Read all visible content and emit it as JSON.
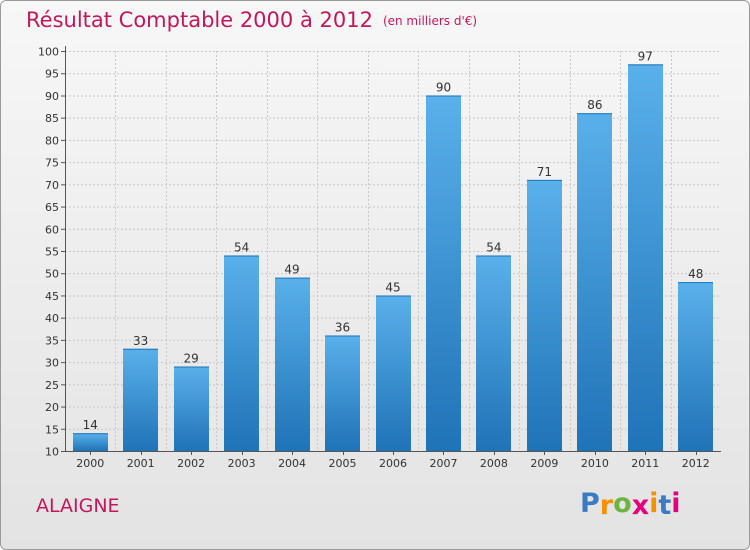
{
  "title": "Résultat Comptable 2000 à 2012",
  "title_unit": "(en milliers d'€)",
  "commune": "ALAIGNE",
  "logo": {
    "letters": [
      "P",
      "r",
      "o",
      "x",
      "i",
      "t",
      "i"
    ],
    "colors": [
      "#3a7cc4",
      "#f39200",
      "#6fb43f",
      "#e5007e",
      "#f39200",
      "#3a7cc4",
      "#e5007e"
    ]
  },
  "colors": {
    "accent": "#c2185b",
    "bar_top": "#5ab0ea",
    "bar_bottom": "#1f73b7"
  },
  "chart_data": {
    "type": "bar",
    "title": "Résultat Comptable 2000 à 2012",
    "ylabel": "en milliers d'€",
    "categories": [
      "2000",
      "2001",
      "2002",
      "2003",
      "2004",
      "2005",
      "2006",
      "2007",
      "2008",
      "2009",
      "2010",
      "2011",
      "2012"
    ],
    "values": [
      14,
      33,
      29,
      54,
      49,
      36,
      45,
      90,
      54,
      71,
      86,
      97,
      48
    ],
    "ylim": [
      10,
      100
    ],
    "yticks": [
      10,
      15,
      20,
      25,
      30,
      35,
      40,
      45,
      50,
      55,
      60,
      65,
      70,
      75,
      80,
      85,
      90,
      95,
      100
    ],
    "grid": true
  }
}
